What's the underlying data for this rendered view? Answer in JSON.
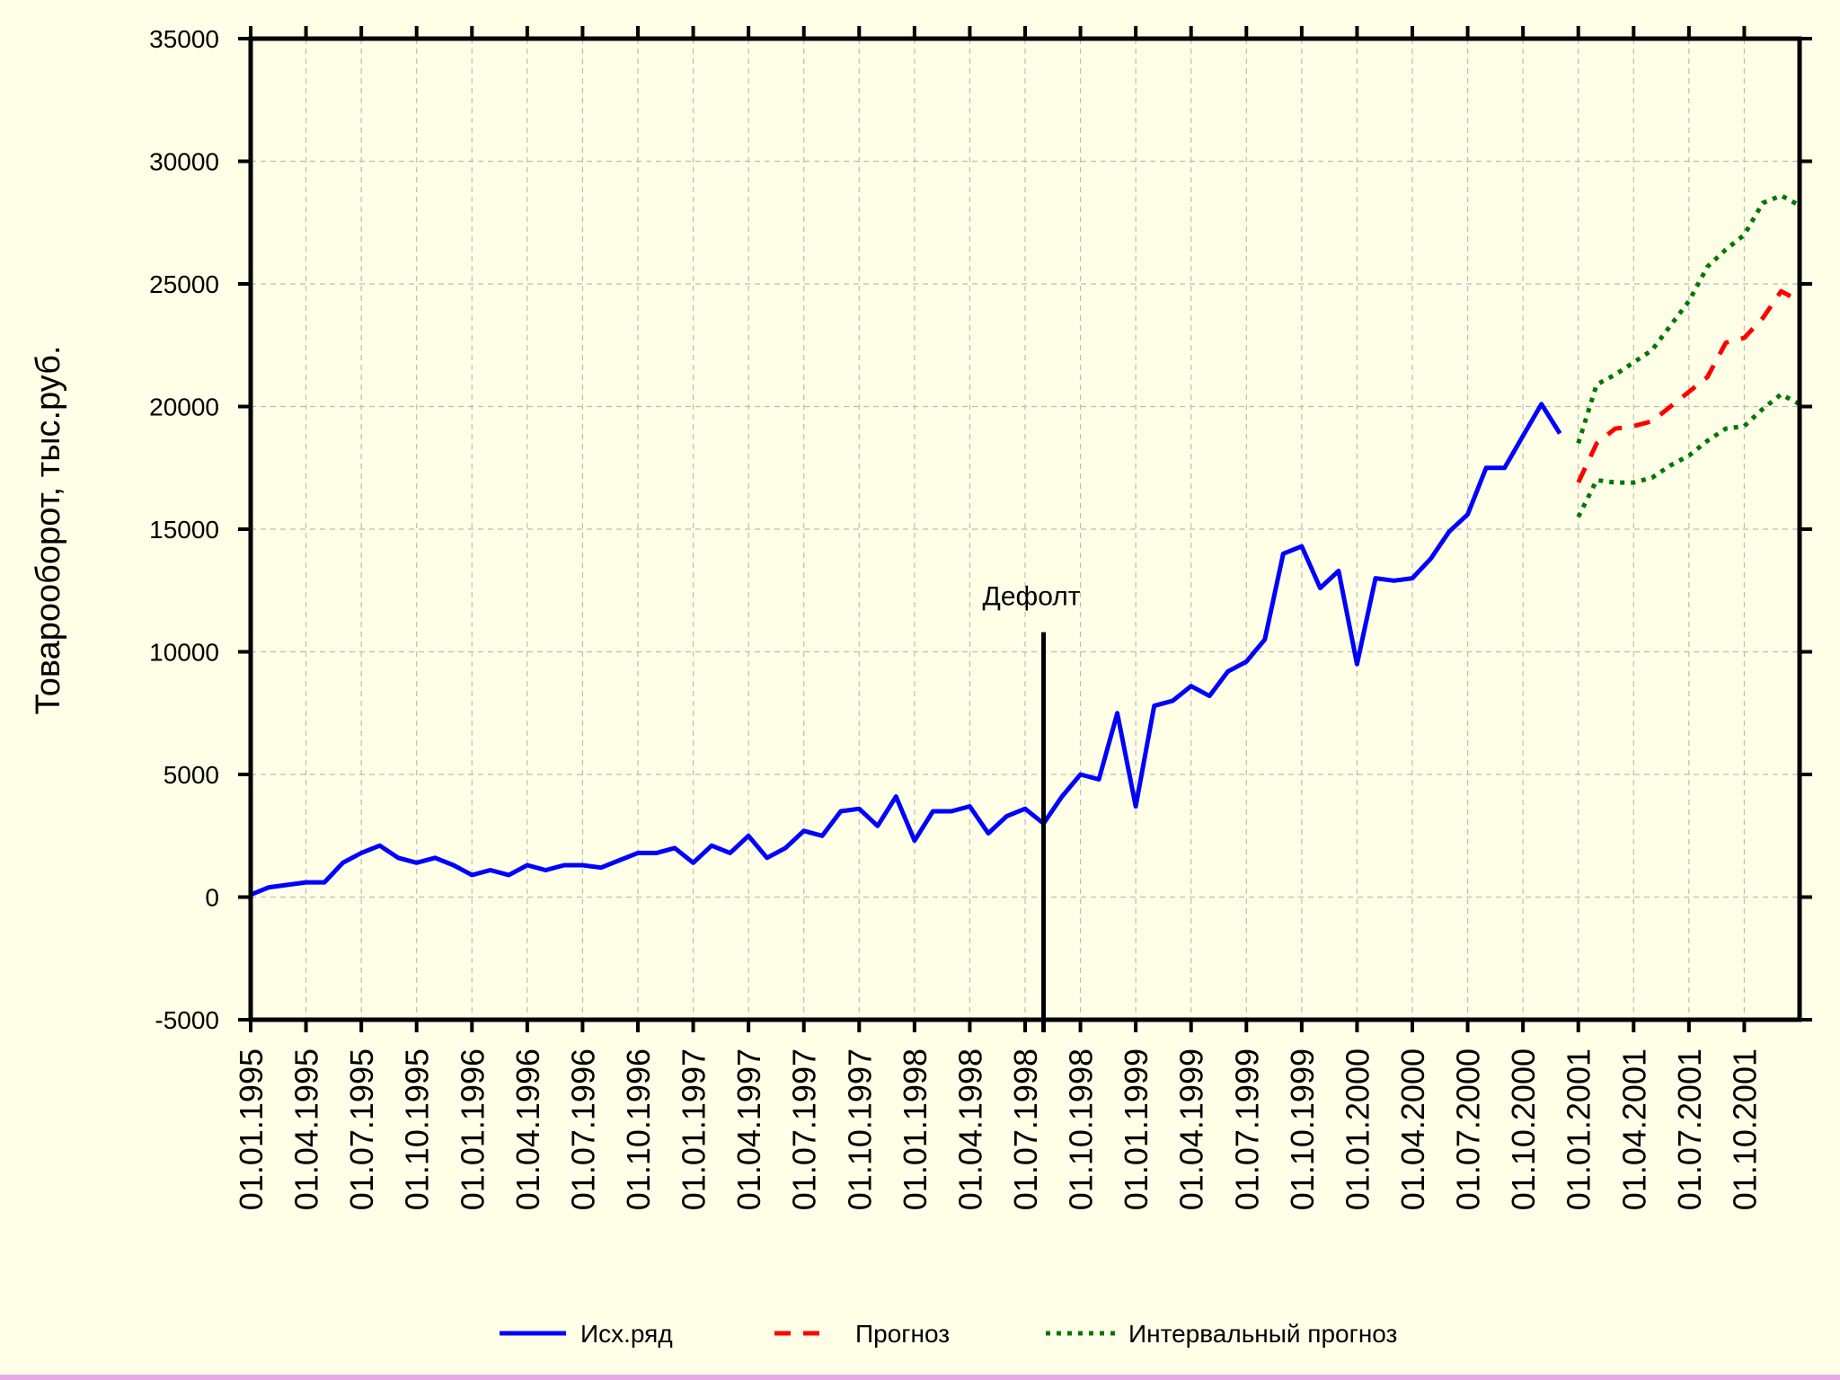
{
  "chart_data": {
    "type": "line",
    "title": "",
    "xlabel": "",
    "ylabel": "Товарооборот, тыс.руб.",
    "ylim": [
      -5000,
      35000
    ],
    "yticks": [
      -5000,
      0,
      5000,
      10000,
      15000,
      20000,
      25000,
      30000,
      35000
    ],
    "x_start": "01.01.1995",
    "x_end": "01.01.2002",
    "x_step_months": 1,
    "xticks": [
      "01.01.1995",
      "01.04.1995",
      "01.07.1995",
      "01.10.1995",
      "01.01.1996",
      "01.04.1996",
      "01.07.1996",
      "01.10.1996",
      "01.01.1997",
      "01.04.1997",
      "01.07.1997",
      "01.10.1997",
      "01.01.1998",
      "01.04.1998",
      "01.07.1998",
      "01.10.1998",
      "01.01.1999",
      "01.04.1999",
      "01.07.1999",
      "01.10.1999",
      "01.01.2000",
      "01.04.2000",
      "01.07.2000",
      "01.10.2000",
      "01.01.2001",
      "01.04.2001",
      "01.07.2001",
      "01.10.2001"
    ],
    "grid": true,
    "legend_position": "bottom",
    "annotations": [
      {
        "label": "Дефолт",
        "x": "01.08.1998",
        "y_top": 10800
      }
    ],
    "series": [
      {
        "name": "Исх.ряд",
        "style": "solid",
        "color": "#0000ff",
        "x_start": "01.01.1995",
        "values": [
          100,
          400,
          500,
          600,
          600,
          1400,
          1800,
          2100,
          1600,
          1400,
          1600,
          1300,
          900,
          1100,
          900,
          1300,
          1100,
          1300,
          1300,
          1200,
          1500,
          1800,
          1800,
          2000,
          1400,
          2100,
          1800,
          2500,
          1600,
          2000,
          2700,
          2500,
          3500,
          3600,
          2900,
          4100,
          2300,
          3500,
          3500,
          3700,
          2600,
          3300,
          3600,
          3000,
          4100,
          5000,
          4800,
          7500,
          3700,
          7800,
          8000,
          8600,
          8200,
          9200,
          9600,
          10500,
          14000,
          14300,
          12600,
          13300,
          9500,
          13000,
          12900,
          13000,
          13800,
          14900,
          15600,
          17500,
          17500,
          18800,
          20100,
          18900
        ]
      },
      {
        "name": "Прогноз",
        "style": "dashed",
        "color": "#ff0000",
        "x_start": "01.01.2001",
        "values": [
          16900,
          18500,
          19100,
          19200,
          19400,
          20000,
          20600,
          21200,
          22600,
          22800,
          23600,
          24700,
          24300
        ]
      },
      {
        "name": "Интервальный прогноз",
        "style": "dotted",
        "color": "#007700",
        "upper": {
          "x_start": "01.01.2001",
          "values": [
            18500,
            20900,
            21300,
            21800,
            22300,
            23300,
            24300,
            25700,
            26400,
            27000,
            28300,
            28600,
            28200
          ]
        },
        "lower": {
          "x_start": "01.01.2001",
          "values": [
            15500,
            17000,
            16900,
            16900,
            17100,
            17600,
            18000,
            18600,
            19100,
            19200,
            19900,
            20500,
            20100
          ]
        }
      }
    ]
  },
  "legend": {
    "items": [
      {
        "label": "Исх.ряд",
        "style": "solid",
        "color": "#0000ff"
      },
      {
        "label": "Прогноз",
        "style": "dashed",
        "color": "#ff0000"
      },
      {
        "label": "Интервальный прогноз",
        "style": "dotted",
        "color": "#007700"
      }
    ]
  }
}
